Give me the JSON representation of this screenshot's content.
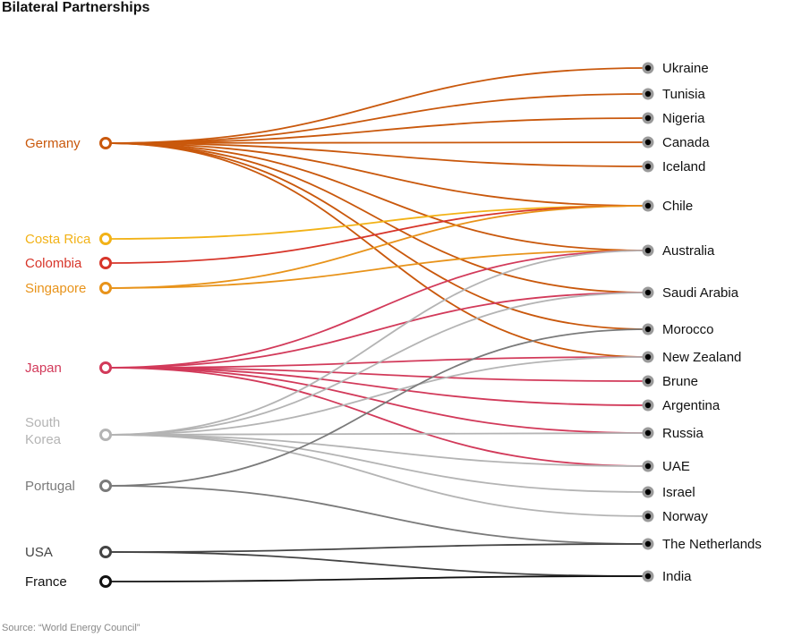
{
  "title": "Bilateral Partnerships",
  "source": "Source: “World Energy Council”",
  "left_nodes": [
    {
      "id": "germany",
      "label": [
        "Germany"
      ],
      "color": "#c9580c"
    },
    {
      "id": "costa-rica",
      "label": [
        "Costa Rica"
      ],
      "color": "#f2b217"
    },
    {
      "id": "colombia",
      "label": [
        "Colombia"
      ],
      "color": "#d7352a"
    },
    {
      "id": "singapore",
      "label": [
        "Singapore"
      ],
      "color": "#e8931a"
    },
    {
      "id": "japan",
      "label": [
        "Japan"
      ],
      "color": "#d23a5a"
    },
    {
      "id": "south-korea",
      "label": [
        "South",
        "Korea"
      ],
      "color": "#b4b4b4"
    },
    {
      "id": "portugal",
      "label": [
        "Portugal"
      ],
      "color": "#7a7a7a"
    },
    {
      "id": "usa",
      "label": [
        "USA"
      ],
      "color": "#444444"
    },
    {
      "id": "france",
      "label": [
        "France"
      ],
      "color": "#111111"
    }
  ],
  "right_nodes": [
    {
      "id": "ukraine",
      "label": "Ukraine"
    },
    {
      "id": "tunisia",
      "label": "Tunisia"
    },
    {
      "id": "nigeria",
      "label": "Nigeria"
    },
    {
      "id": "canada",
      "label": "Canada"
    },
    {
      "id": "iceland",
      "label": "Iceland"
    },
    {
      "id": "chile",
      "label": "Chile"
    },
    {
      "id": "australia",
      "label": "Australia"
    },
    {
      "id": "saudi-arabia",
      "label": "Saudi Arabia"
    },
    {
      "id": "morocco",
      "label": "Morocco"
    },
    {
      "id": "new-zealand",
      "label": "New Zealand"
    },
    {
      "id": "brune",
      "label": "Brune"
    },
    {
      "id": "argentina",
      "label": "Argentina"
    },
    {
      "id": "russia",
      "label": "Russia"
    },
    {
      "id": "uae",
      "label": "UAE"
    },
    {
      "id": "israel",
      "label": "Israel"
    },
    {
      "id": "norway",
      "label": "Norway"
    },
    {
      "id": "the-netherlands",
      "label": "The Netherlands"
    },
    {
      "id": "india",
      "label": "India"
    }
  ],
  "links": [
    [
      "germany",
      "ukraine"
    ],
    [
      "germany",
      "tunisia"
    ],
    [
      "germany",
      "nigeria"
    ],
    [
      "germany",
      "canada"
    ],
    [
      "germany",
      "iceland"
    ],
    [
      "germany",
      "chile"
    ],
    [
      "germany",
      "australia"
    ],
    [
      "germany",
      "saudi-arabia"
    ],
    [
      "germany",
      "morocco"
    ],
    [
      "germany",
      "new-zealand"
    ],
    [
      "costa-rica",
      "chile"
    ],
    [
      "colombia",
      "chile"
    ],
    [
      "singapore",
      "chile"
    ],
    [
      "singapore",
      "australia"
    ],
    [
      "japan",
      "australia"
    ],
    [
      "japan",
      "saudi-arabia"
    ],
    [
      "japan",
      "new-zealand"
    ],
    [
      "japan",
      "brune"
    ],
    [
      "japan",
      "argentina"
    ],
    [
      "japan",
      "russia"
    ],
    [
      "japan",
      "uae"
    ],
    [
      "south-korea",
      "australia"
    ],
    [
      "south-korea",
      "saudi-arabia"
    ],
    [
      "south-korea",
      "new-zealand"
    ],
    [
      "south-korea",
      "russia"
    ],
    [
      "south-korea",
      "uae"
    ],
    [
      "south-korea",
      "israel"
    ],
    [
      "south-korea",
      "norway"
    ],
    [
      "portugal",
      "morocco"
    ],
    [
      "portugal",
      "the-netherlands"
    ],
    [
      "usa",
      "the-netherlands"
    ],
    [
      "usa",
      "india"
    ],
    [
      "france",
      "india"
    ]
  ],
  "right_node_color": "#9a9a9a",
  "right_node_dot_color": "#000000"
}
